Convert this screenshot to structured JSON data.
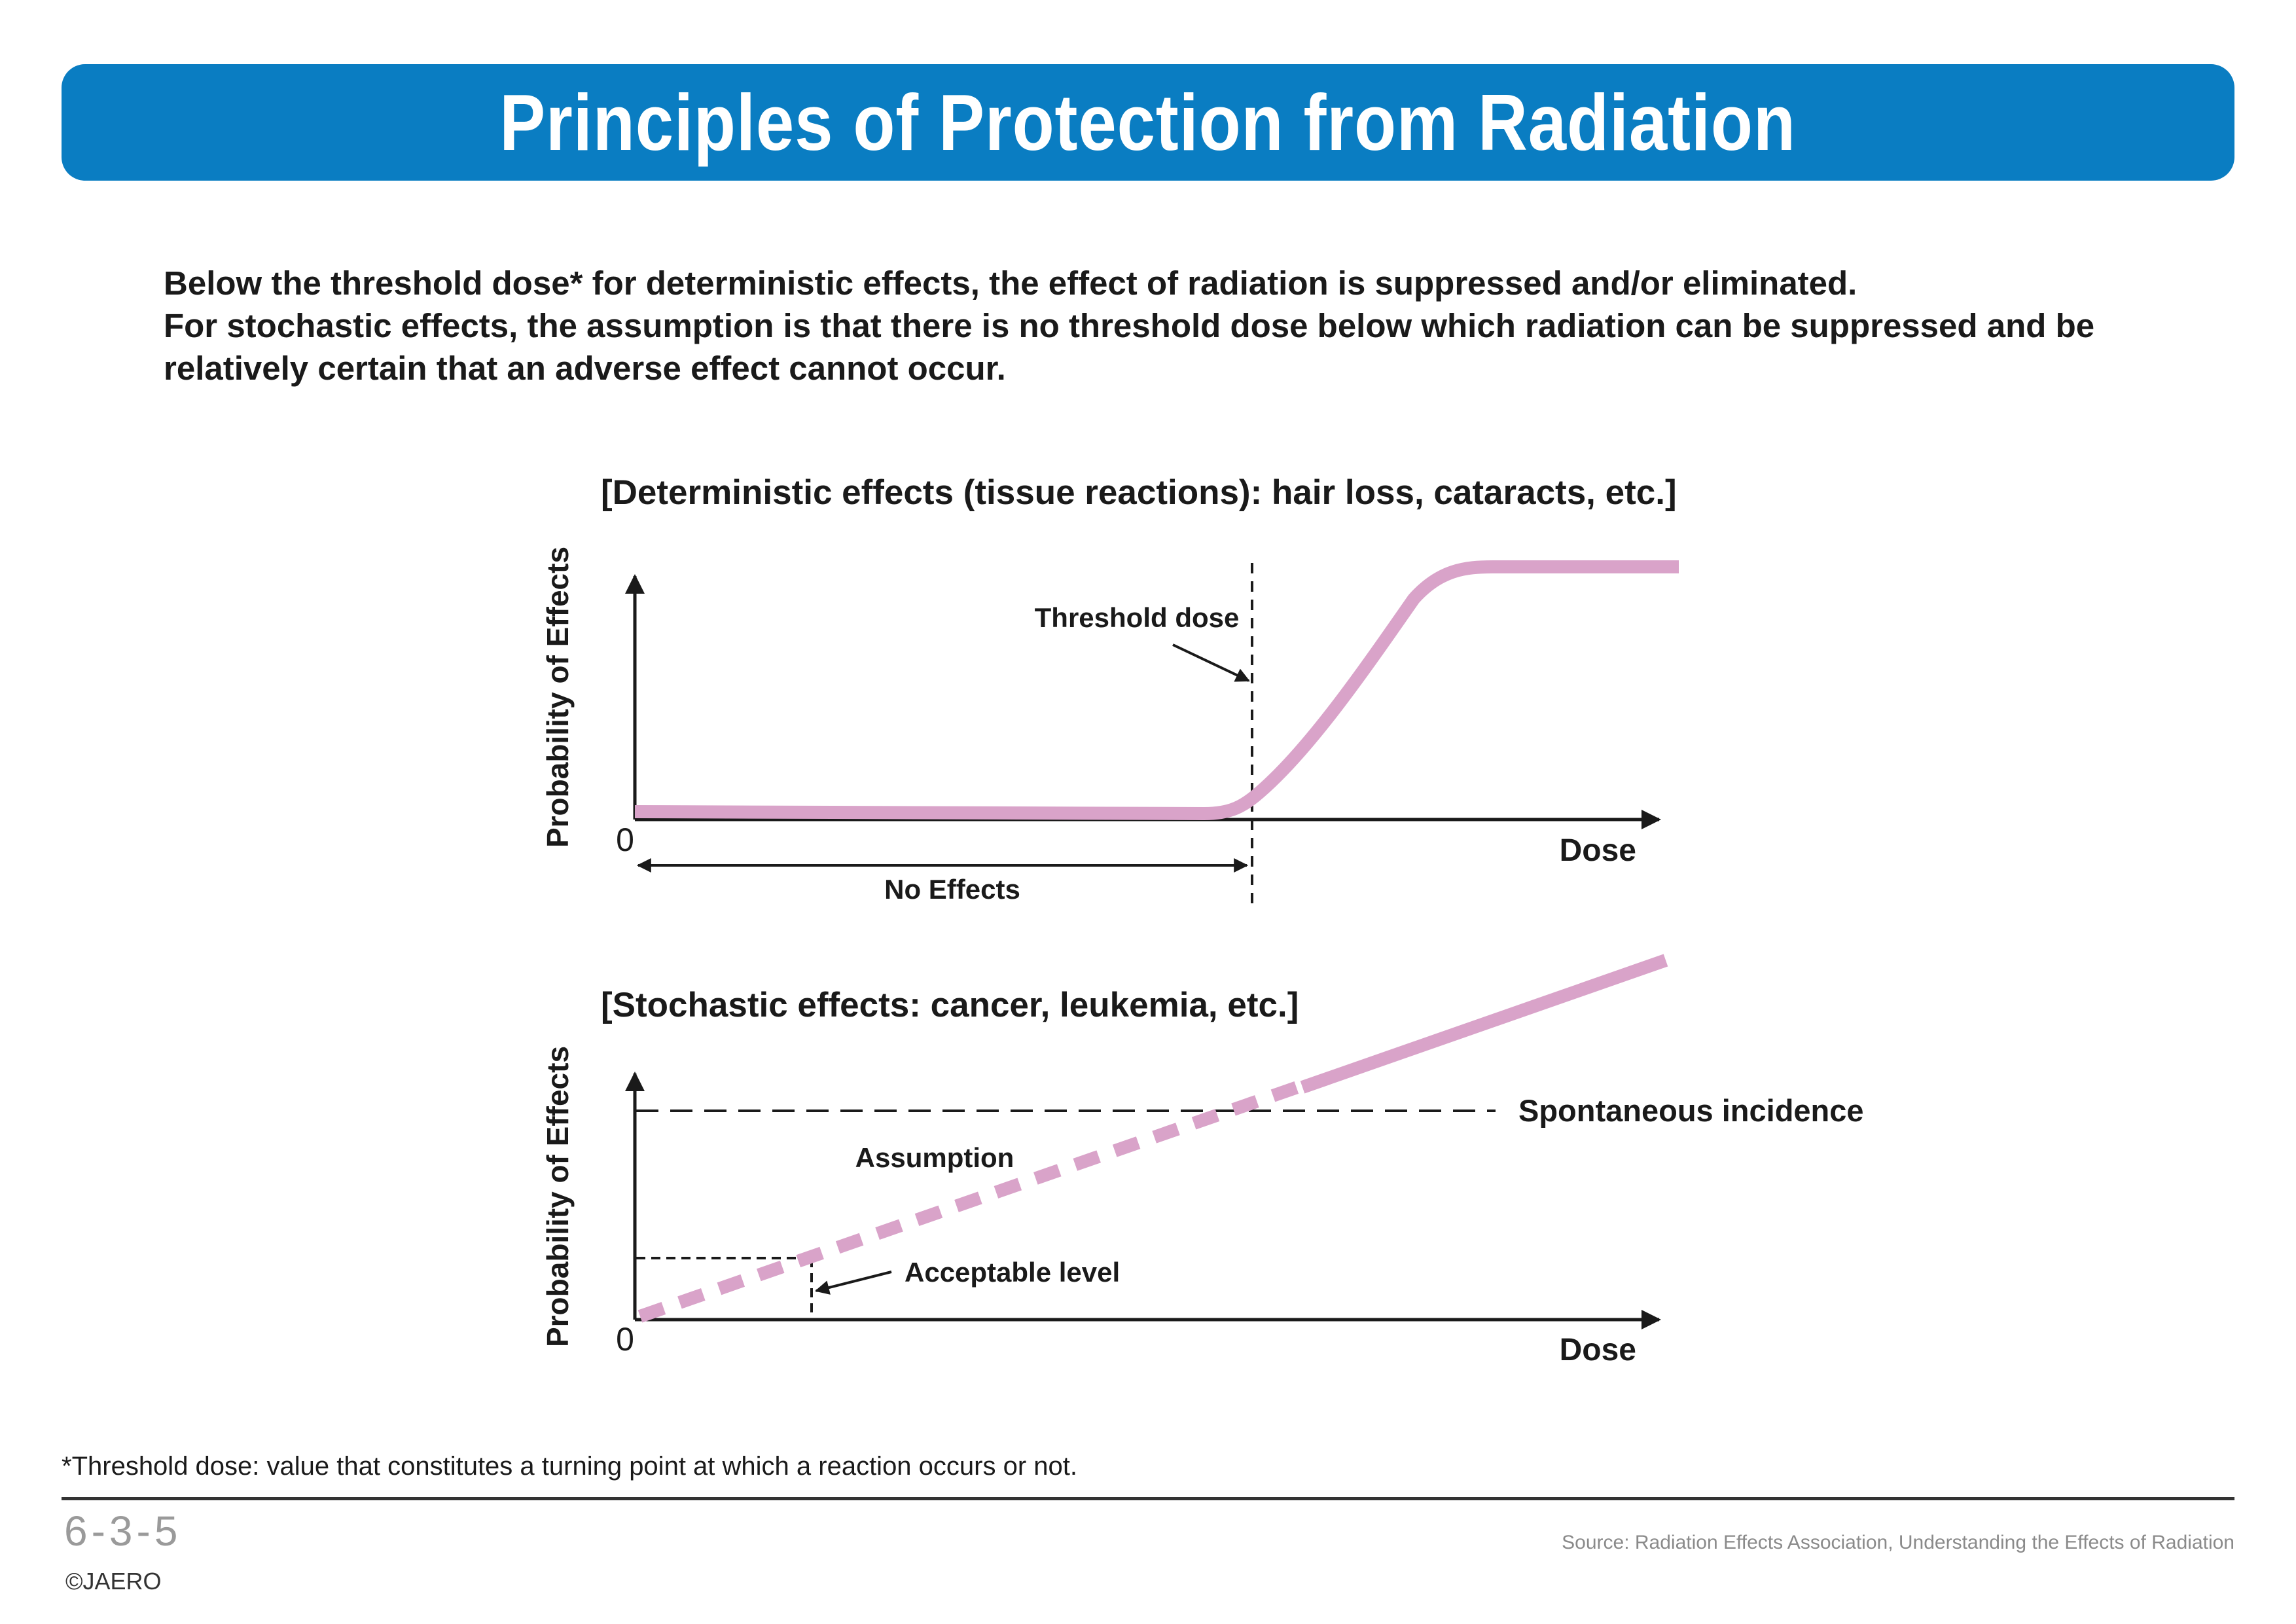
{
  "title": "Principles of Protection from Radiation",
  "intro": {
    "line1": "Below the threshold dose* for deterministic effects, the effect of radiation is suppressed and/or eliminated.",
    "line2": "For stochastic effects, the assumption is that there is no threshold dose below which radiation can be suppressed and be relatively certain that an adverse effect cannot occur."
  },
  "deterministic": {
    "heading": "[Deterministic effects (tissue reactions): hair loss, cataracts, etc.]",
    "y_label": "Probability of Effects",
    "x_label": "Dose",
    "origin": "0",
    "threshold_label": "Threshold dose",
    "no_effects_label": "No Effects"
  },
  "stochastic": {
    "heading": "[Stochastic effects: cancer, leukemia, etc.]",
    "y_label": "Probability of Effects",
    "x_label": "Dose",
    "origin": "0",
    "spontaneous_label": "Spontaneous incidence",
    "assumption_label": "Assumption",
    "acceptable_label": "Acceptable level"
  },
  "colors": {
    "banner": "#0a7dc2",
    "curve": "#d9a3c9",
    "ink": "#1a1a1a"
  },
  "footnote": "*Threshold dose: value that constitutes a turning point at which a reaction occurs or not.",
  "page_number": "6-3-5",
  "copyright": "©JAERO",
  "source": "Source: Radiation Effects Association, Understanding the Effects of Radiation"
}
